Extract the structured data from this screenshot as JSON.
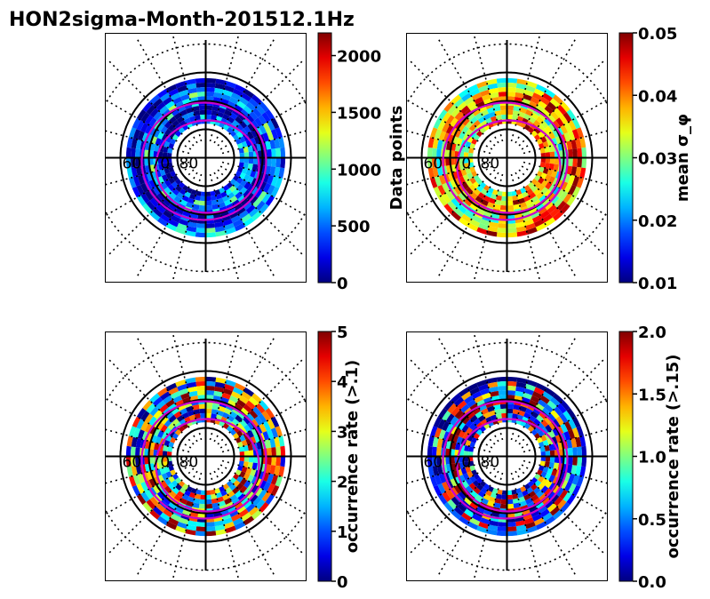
{
  "figure": {
    "title": "HON2sigma-Month-201512.1Hz"
  },
  "chart_data": [
    {
      "type": "heatmap",
      "projection": "polar",
      "colormap": "jet",
      "title": "",
      "colorbar": {
        "label": "Data points",
        "label_side": "left",
        "range": [
          0,
          2200
        ],
        "ticks": [
          "0",
          "500",
          "1000",
          "1500",
          "2000"
        ]
      },
      "lat_labels": [
        "60",
        "70",
        "80"
      ],
      "ring_range": [
        62,
        78
      ],
      "pattern": [
        0.05,
        0.1,
        0.15,
        0.2,
        0.08,
        0.4,
        0.3,
        0.1,
        0.12,
        0.25,
        0.06,
        0.18
      ]
    },
    {
      "type": "heatmap",
      "projection": "polar",
      "colormap": "jet",
      "colorbar": {
        "label": "mean σ_φ",
        "label_side": "right",
        "range": [
          0.01,
          0.05
        ],
        "ticks": [
          "0.01",
          "0.02",
          "0.03",
          "0.04",
          "0.05"
        ]
      },
      "lat_labels": [
        "60",
        "70",
        "80"
      ],
      "ring_range": [
        62,
        78
      ],
      "pattern": [
        0.5,
        0.6,
        0.7,
        0.85,
        0.55,
        0.45,
        0.75,
        0.9,
        0.65,
        0.5,
        0.8,
        0.6
      ]
    },
    {
      "type": "heatmap",
      "projection": "polar",
      "colormap": "jet",
      "colorbar": {
        "label": "occurrence rate (>.1)",
        "label_side": "right",
        "range": [
          0,
          5
        ],
        "ticks": [
          "0",
          "1",
          "2",
          "3",
          "4",
          "5"
        ]
      },
      "lat_labels": [
        "60",
        "70",
        "80"
      ],
      "ring_range": [
        62,
        78
      ],
      "pattern": [
        0.1,
        0.3,
        0.55,
        0.8,
        0.95,
        0.2,
        0.45,
        0.7,
        0.35,
        0.9,
        0.15,
        0.6
      ]
    },
    {
      "type": "heatmap",
      "projection": "polar",
      "colormap": "jet",
      "colorbar": {
        "label": "occurrence rate (>.15)",
        "label_side": "right",
        "range": [
          0.0,
          2.0
        ],
        "ticks": [
          "0.0",
          "0.5",
          "1.0",
          "1.5",
          "2.0"
        ]
      },
      "lat_labels": [
        "60",
        "70",
        "80"
      ],
      "ring_range": [
        62,
        78
      ],
      "pattern": [
        0.05,
        0.2,
        0.95,
        0.1,
        0.5,
        0.85,
        0.15,
        0.3,
        0.9,
        0.08,
        0.6,
        0.25
      ]
    }
  ],
  "colors": {
    "contour": "#cc00cc",
    "grid": "#000000"
  }
}
